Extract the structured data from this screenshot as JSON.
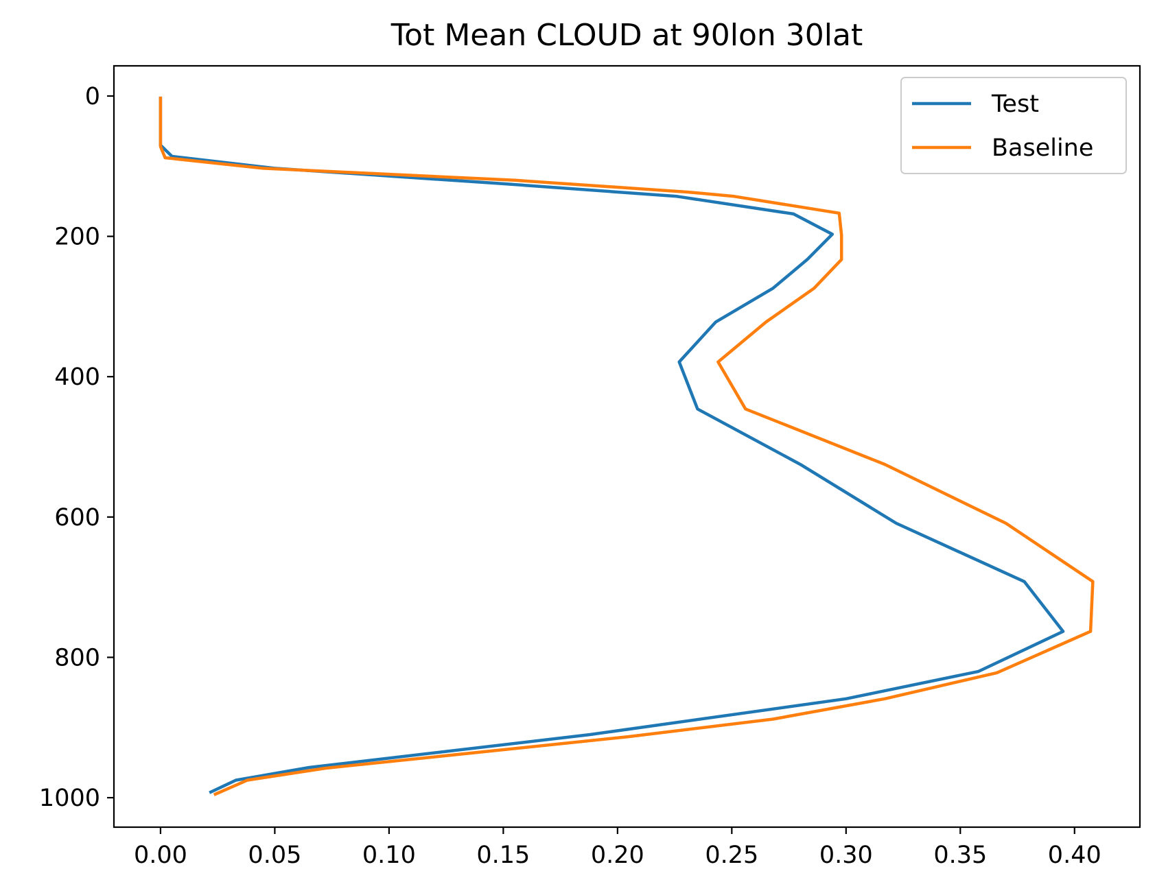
{
  "chart_data": {
    "type": "line",
    "title": "Tot Mean CLOUD at 90lon 30lat",
    "xlabel": "",
    "ylabel": "",
    "xlim": [
      -0.0204,
      0.4286
    ],
    "ylim": [
      1042,
      -43
    ],
    "y_inverted": true,
    "x_ticks": [
      "0.00",
      "0.05",
      "0.10",
      "0.15",
      "0.20",
      "0.25",
      "0.30",
      "0.35",
      "0.40"
    ],
    "x_tick_values": [
      0,
      0.05,
      0.1,
      0.15,
      0.2,
      0.25,
      0.3,
      0.35,
      0.4
    ],
    "y_ticks": [
      "0",
      "200",
      "400",
      "600",
      "800",
      "1000"
    ],
    "y_tick_values": [
      0,
      200,
      400,
      600,
      800,
      1000
    ],
    "grid": false,
    "legend_position": "top-right",
    "series": [
      {
        "name": "Test",
        "color": "#1f77b4",
        "points": [
          [
            0.0,
            3
          ],
          [
            0.0,
            7
          ],
          [
            0.0,
            14
          ],
          [
            0.0,
            25
          ],
          [
            0.0,
            37
          ],
          [
            0.0,
            53
          ],
          [
            0.0,
            70
          ],
          [
            0.005,
            86
          ],
          [
            0.05,
            103
          ],
          [
            0.15,
            125
          ],
          [
            0.226,
            143
          ],
          [
            0.277,
            168
          ],
          [
            0.294,
            197
          ],
          [
            0.283,
            233
          ],
          [
            0.268,
            274
          ],
          [
            0.243,
            322
          ],
          [
            0.227,
            379
          ],
          [
            0.235,
            446
          ],
          [
            0.28,
            525
          ],
          [
            0.322,
            609
          ],
          [
            0.378,
            692
          ],
          [
            0.395,
            763
          ],
          [
            0.358,
            820
          ],
          [
            0.3,
            859
          ],
          [
            0.188,
            910
          ],
          [
            0.065,
            957
          ],
          [
            0.033,
            975
          ],
          [
            0.022,
            992
          ]
        ]
      },
      {
        "name": "Baseline",
        "color": "#ff7f0e",
        "points": [
          [
            0.0,
            3
          ],
          [
            0.0,
            7
          ],
          [
            0.0,
            14
          ],
          [
            0.0,
            25
          ],
          [
            0.0,
            37
          ],
          [
            0.0,
            53
          ],
          [
            0.0,
            72
          ],
          [
            0.002,
            88
          ],
          [
            0.045,
            103
          ],
          [
            0.155,
            120
          ],
          [
            0.231,
            137
          ],
          [
            0.251,
            143
          ],
          [
            0.297,
            167
          ],
          [
            0.298,
            198
          ],
          [
            0.298,
            233
          ],
          [
            0.286,
            274
          ],
          [
            0.265,
            322
          ],
          [
            0.244,
            379
          ],
          [
            0.256,
            446
          ],
          [
            0.317,
            525
          ],
          [
            0.37,
            609
          ],
          [
            0.408,
            692
          ],
          [
            0.407,
            763
          ],
          [
            0.366,
            822
          ],
          [
            0.317,
            859
          ],
          [
            0.268,
            888
          ],
          [
            0.205,
            913
          ],
          [
            0.072,
            958
          ],
          [
            0.038,
            975
          ],
          [
            0.024,
            995
          ]
        ]
      }
    ]
  }
}
